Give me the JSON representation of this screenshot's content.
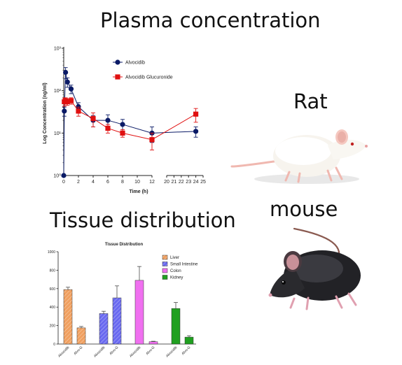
{
  "headings": {
    "plasma": "Plasma concentration",
    "rat": "Rat",
    "tissue": "Tissue distribution",
    "mouse": "mouse"
  },
  "colors": {
    "alvocidib": "#0a1a66",
    "glucuronide": "#e01010",
    "liver": "#f0a060",
    "small_intestine": "#6a6af0",
    "colon": "#f070f0",
    "kidney": "#20a020"
  },
  "icons": {
    "rat": "rat-illustration",
    "mouse": "mouse-illustration"
  },
  "chart_data": [
    {
      "type": "line",
      "title": "",
      "xlabel": "Time (h)",
      "ylabel": "Log Concentration (ng/ml)",
      "yscale": "log",
      "xlim": [
        0,
        25
      ],
      "ylim": [
        1,
        1000
      ],
      "x_ticks": [
        "0",
        "2",
        "4",
        "6",
        "8",
        "10",
        "12",
        "20",
        "21",
        "22",
        "23",
        "24",
        "25"
      ],
      "y_ticks": [
        "10⁰",
        "10¹",
        "10²",
        "10³"
      ],
      "legend_position": "top-right",
      "x_break": "between 12 and 20",
      "series": [
        {
          "name": "Alvocidib",
          "marker": "circle",
          "x": [
            0,
            0.08,
            0.25,
            0.5,
            1,
            2,
            4,
            6,
            8,
            12,
            24
          ],
          "y": [
            1,
            33,
            270,
            160,
            110,
            42,
            20,
            20,
            16,
            10,
            11
          ],
          "err": [
            0,
            8,
            80,
            40,
            25,
            10,
            6,
            7,
            5,
            4,
            3
          ]
        },
        {
          "name": "Alvocidib Glucuronide",
          "marker": "square",
          "x": [
            0.08,
            0.25,
            0.5,
            1,
            2,
            4,
            6,
            8,
            12,
            24
          ],
          "y": [
            55,
            58,
            55,
            58,
            33,
            22,
            13,
            10,
            7,
            28
          ],
          "err": [
            12,
            10,
            10,
            10,
            8,
            8,
            3,
            2,
            3,
            10
          ]
        }
      ]
    },
    {
      "type": "bar",
      "title": "Tissue Distribution",
      "xlabel": "",
      "ylabel": "",
      "ylim": [
        0,
        1000
      ],
      "y_ticks": [
        "0",
        "200",
        "400",
        "600",
        "800",
        "1000"
      ],
      "legend_position": "top-right",
      "groups": [
        "Liver",
        "Small Intestine",
        "Colon",
        "Kidney"
      ],
      "categories": [
        "Alvocidib",
        "Alvo-G",
        "Alvocidib",
        "Alvo-G",
        "Alvocidib",
        "Alvo-G",
        "Alvocidib",
        "Alvo-G"
      ],
      "values": [
        590,
        175,
        330,
        500,
        690,
        25,
        385,
        75
      ],
      "err": [
        25,
        15,
        25,
        130,
        150,
        5,
        65,
        15
      ]
    }
  ]
}
